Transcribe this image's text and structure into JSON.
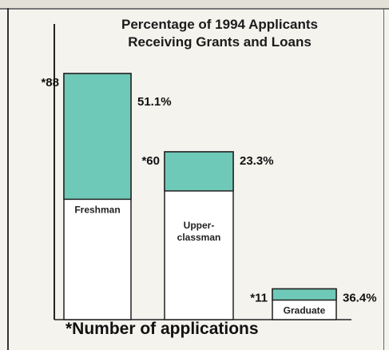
{
  "chart_data": {
    "type": "bar",
    "title_lines": [
      "Percentage of 1994 Applicants",
      "Receiving Grants and Loans"
    ],
    "categories": [
      "Freshman",
      "Upper-classman",
      "Graduate"
    ],
    "applications": [
      88,
      60,
      11
    ],
    "application_labels": [
      "*88",
      "*60",
      "*11"
    ],
    "percent_receiving": [
      51.1,
      23.3,
      36.4
    ],
    "percent_labels": [
      "51.1%",
      "23.3%",
      "36.4%"
    ],
    "category_label_lines": [
      [
        "Freshman"
      ],
      [
        "Upper-",
        "classman"
      ],
      [
        "Graduate"
      ]
    ],
    "footnote": "*Number of applications",
    "ylim": [
      0,
      88
    ],
    "colors": {
      "fill": "#6fc9b8",
      "bar_outline": "#222222",
      "axis": "#222222"
    }
  }
}
